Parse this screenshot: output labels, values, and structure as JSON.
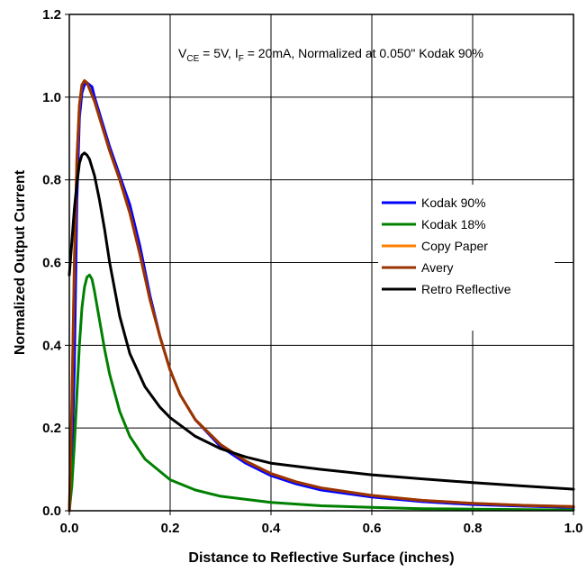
{
  "chart_data": {
    "type": "line",
    "title": "",
    "xlabel": "Distance to Reflective Surface (inches)",
    "ylabel": "Normalized Output Current",
    "xlim": [
      0.0,
      1.0
    ],
    "ylim": [
      0.0,
      1.2
    ],
    "x_ticks": [
      "0.0",
      "0.2",
      "0.4",
      "0.6",
      "0.8",
      "1.0"
    ],
    "y_ticks": [
      "0.0",
      "0.2",
      "0.4",
      "0.6",
      "0.8",
      "1.0",
      "1.2"
    ],
    "grid": true,
    "legend_position": "right",
    "annotation": {
      "v": "V",
      "v_sub": "CE",
      "v_rest": " = 5V, I",
      "i_sub": "F",
      "rest": " = 20mA, Normalized at 0.050\" Kodak 90%"
    },
    "series": [
      {
        "name": "Kodak 90%",
        "color": "#0000FF",
        "points": [
          [
            0,
            0
          ],
          [
            0.005,
            0.12
          ],
          [
            0.01,
            0.35
          ],
          [
            0.015,
            0.75
          ],
          [
            0.02,
            0.95
          ],
          [
            0.025,
            1.01
          ],
          [
            0.03,
            1.03
          ],
          [
            0.035,
            1.035
          ],
          [
            0.04,
            1.03
          ],
          [
            0.045,
            1.025
          ],
          [
            0.05,
            1.0
          ],
          [
            0.06,
            0.96
          ],
          [
            0.08,
            0.88
          ],
          [
            0.1,
            0.81
          ],
          [
            0.12,
            0.74
          ],
          [
            0.14,
            0.64
          ],
          [
            0.16,
            0.52
          ],
          [
            0.18,
            0.42
          ],
          [
            0.2,
            0.34
          ],
          [
            0.22,
            0.28
          ],
          [
            0.25,
            0.22
          ],
          [
            0.3,
            0.155
          ],
          [
            0.35,
            0.115
          ],
          [
            0.4,
            0.085
          ],
          [
            0.45,
            0.065
          ],
          [
            0.5,
            0.05
          ],
          [
            0.6,
            0.033
          ],
          [
            0.7,
            0.022
          ],
          [
            0.8,
            0.015
          ],
          [
            0.9,
            0.011
          ],
          [
            1.0,
            0.008
          ]
        ]
      },
      {
        "name": "Kodak 18%",
        "color": "#008000",
        "points": [
          [
            0,
            0
          ],
          [
            0.005,
            0.06
          ],
          [
            0.01,
            0.16
          ],
          [
            0.015,
            0.28
          ],
          [
            0.02,
            0.4
          ],
          [
            0.025,
            0.49
          ],
          [
            0.03,
            0.54
          ],
          [
            0.035,
            0.565
          ],
          [
            0.04,
            0.57
          ],
          [
            0.045,
            0.56
          ],
          [
            0.05,
            0.53
          ],
          [
            0.06,
            0.46
          ],
          [
            0.07,
            0.39
          ],
          [
            0.08,
            0.33
          ],
          [
            0.1,
            0.24
          ],
          [
            0.12,
            0.18
          ],
          [
            0.15,
            0.125
          ],
          [
            0.2,
            0.075
          ],
          [
            0.25,
            0.05
          ],
          [
            0.3,
            0.035
          ],
          [
            0.4,
            0.02
          ],
          [
            0.5,
            0.012
          ],
          [
            0.6,
            0.008
          ],
          [
            0.7,
            0.005
          ],
          [
            0.8,
            0.004
          ],
          [
            1.0,
            0.002
          ]
        ]
      },
      {
        "name": "Copy Paper",
        "color": "#FF8000",
        "points": [
          [
            0,
            0
          ],
          [
            0.005,
            0.25
          ],
          [
            0.01,
            0.6
          ],
          [
            0.015,
            0.85
          ],
          [
            0.02,
            0.98
          ],
          [
            0.025,
            1.03
          ],
          [
            0.03,
            1.04
          ],
          [
            0.035,
            1.035
          ],
          [
            0.04,
            1.02
          ],
          [
            0.05,
            0.99
          ],
          [
            0.06,
            0.95
          ],
          [
            0.08,
            0.87
          ],
          [
            0.1,
            0.8
          ],
          [
            0.12,
            0.72
          ],
          [
            0.14,
            0.62
          ],
          [
            0.16,
            0.51
          ],
          [
            0.18,
            0.42
          ],
          [
            0.2,
            0.34
          ],
          [
            0.22,
            0.28
          ],
          [
            0.25,
            0.22
          ],
          [
            0.3,
            0.16
          ],
          [
            0.35,
            0.12
          ],
          [
            0.4,
            0.09
          ],
          [
            0.45,
            0.07
          ],
          [
            0.5,
            0.055
          ],
          [
            0.6,
            0.037
          ],
          [
            0.7,
            0.025
          ],
          [
            0.8,
            0.018
          ],
          [
            0.9,
            0.013
          ],
          [
            1.0,
            0.01
          ]
        ]
      },
      {
        "name": "Avery",
        "color": "#993300",
        "points": [
          [
            0,
            0
          ],
          [
            0.005,
            0.25
          ],
          [
            0.01,
            0.6
          ],
          [
            0.015,
            0.85
          ],
          [
            0.02,
            0.98
          ],
          [
            0.025,
            1.03
          ],
          [
            0.03,
            1.04
          ],
          [
            0.035,
            1.035
          ],
          [
            0.04,
            1.02
          ],
          [
            0.05,
            0.99
          ],
          [
            0.06,
            0.95
          ],
          [
            0.08,
            0.87
          ],
          [
            0.1,
            0.8
          ],
          [
            0.12,
            0.72
          ],
          [
            0.14,
            0.62
          ],
          [
            0.16,
            0.51
          ],
          [
            0.18,
            0.42
          ],
          [
            0.2,
            0.34
          ],
          [
            0.22,
            0.28
          ],
          [
            0.25,
            0.22
          ],
          [
            0.3,
            0.16
          ],
          [
            0.35,
            0.12
          ],
          [
            0.4,
            0.09
          ],
          [
            0.45,
            0.07
          ],
          [
            0.5,
            0.055
          ],
          [
            0.6,
            0.037
          ],
          [
            0.7,
            0.025
          ],
          [
            0.8,
            0.018
          ],
          [
            0.9,
            0.013
          ],
          [
            1.0,
            0.01
          ]
        ]
      },
      {
        "name": "Retro Reflective",
        "color": "#000000",
        "points": [
          [
            0,
            0.57
          ],
          [
            0.005,
            0.65
          ],
          [
            0.01,
            0.73
          ],
          [
            0.015,
            0.79
          ],
          [
            0.02,
            0.84
          ],
          [
            0.025,
            0.86
          ],
          [
            0.03,
            0.865
          ],
          [
            0.035,
            0.86
          ],
          [
            0.04,
            0.85
          ],
          [
            0.05,
            0.81
          ],
          [
            0.06,
            0.75
          ],
          [
            0.07,
            0.68
          ],
          [
            0.08,
            0.6
          ],
          [
            0.1,
            0.47
          ],
          [
            0.12,
            0.38
          ],
          [
            0.15,
            0.3
          ],
          [
            0.18,
            0.25
          ],
          [
            0.2,
            0.225
          ],
          [
            0.25,
            0.18
          ],
          [
            0.3,
            0.15
          ],
          [
            0.35,
            0.13
          ],
          [
            0.4,
            0.115
          ],
          [
            0.5,
            0.1
          ],
          [
            0.6,
            0.087
          ],
          [
            0.7,
            0.077
          ],
          [
            0.8,
            0.068
          ],
          [
            0.9,
            0.06
          ],
          [
            1.0,
            0.052
          ]
        ]
      }
    ]
  }
}
